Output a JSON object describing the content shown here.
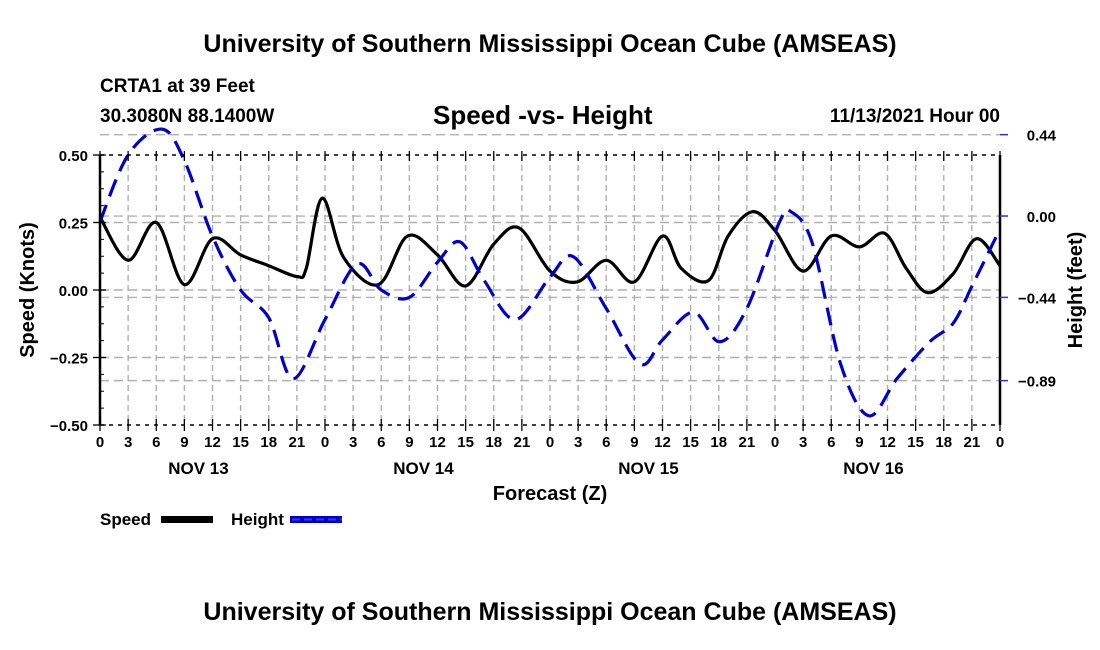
{
  "header": {
    "main_title": "University of Southern Mississippi Ocean Cube (AMSEAS)",
    "station": "CRTA1 at 39 Feet",
    "coords": "30.3080N  88.1400W",
    "subtitle": "Speed -vs- Height",
    "datetime": "11/13/2021 Hour 00"
  },
  "footer": {
    "title": "University of Southern Mississippi Ocean Cube (AMSEAS)"
  },
  "chart_data": {
    "type": "line",
    "title": "Speed -vs- Height",
    "xlabel": "Forecast (Z)",
    "ylabel": "Speed (Knots)",
    "y2label": "Height (feet)",
    "xlim": [
      0,
      96
    ],
    "ylim": [
      -0.5,
      0.5
    ],
    "y2lim": [
      -1.13,
      0.33
    ],
    "x_ticks": [
      0,
      3,
      6,
      9,
      12,
      15,
      18,
      21,
      24,
      27,
      30,
      33,
      36,
      39,
      42,
      45,
      48,
      51,
      54,
      57,
      60,
      63,
      66,
      69,
      72,
      75,
      78,
      81,
      84,
      87,
      90,
      93,
      96
    ],
    "x_tick_labels": [
      "0",
      "3",
      "6",
      "9",
      "12",
      "15",
      "18",
      "21",
      "0",
      "3",
      "6",
      "9",
      "12",
      "15",
      "18",
      "21",
      "0",
      "3",
      "6",
      "9",
      "12",
      "15",
      "18",
      "21",
      "0",
      "3",
      "6",
      "9",
      "12",
      "15",
      "18",
      "21",
      "0"
    ],
    "day_labels": [
      {
        "label": "NOV 13",
        "x": 10.5
      },
      {
        "label": "NOV 14",
        "x": 34.5
      },
      {
        "label": "NOV 15",
        "x": 58.5
      },
      {
        "label": "NOV 16",
        "x": 82.5
      }
    ],
    "y_ticks": [
      0.5,
      0.25,
      0.0,
      -0.25,
      -0.5
    ],
    "y_tick_labels": [
      "0.50",
      "0.25",
      "0.00",
      "−0.25",
      "−0.50"
    ],
    "y2_ticks": [
      0.44,
      0.0,
      -0.44,
      -0.89
    ],
    "y2_tick_labels": [
      "0.44",
      "0.00",
      "−0.44",
      "−0.89"
    ],
    "grid": true,
    "legend_position": "bottom-left",
    "series": [
      {
        "name": "Speed",
        "axis": "left",
        "color": "#000000",
        "style": "solid",
        "x": [
          0,
          3,
          6,
          9,
          12,
          15,
          18,
          21,
          22,
          23.7,
          26,
          29.7,
          32.8,
          36,
          39,
          42,
          44.7,
          48,
          50.9,
          54,
          57,
          60,
          62,
          64.9,
          67,
          69.6,
          72,
          75,
          78,
          81,
          83.7,
          86,
          88.3,
          91,
          93.5,
          96
        ],
        "values": [
          0.27,
          0.11,
          0.25,
          0.02,
          0.19,
          0.13,
          0.09,
          0.05,
          0.08,
          0.34,
          0.12,
          0.02,
          0.2,
          0.13,
          0.015,
          0.17,
          0.23,
          0.07,
          0.03,
          0.11,
          0.03,
          0.2,
          0.08,
          0.035,
          0.2,
          0.29,
          0.22,
          0.07,
          0.2,
          0.16,
          0.21,
          0.08,
          -0.01,
          0.06,
          0.19,
          0.09
        ]
      },
      {
        "name": "Height",
        "axis": "right",
        "color": "#0000cc",
        "style": "dashed",
        "x": [
          0,
          3,
          6.6,
          9,
          12,
          15,
          18,
          20.6,
          24,
          27.4,
          30,
          33,
          36,
          38.4,
          41,
          44.3,
          48,
          50.5,
          54,
          57.6,
          60,
          63.3,
          66.1,
          69,
          72.5,
          73.8,
          76,
          79,
          82,
          85,
          88.5,
          91,
          93,
          96
        ],
        "values": [
          -0.03,
          0.33,
          0.47,
          0.3,
          -0.11,
          -0.4,
          -0.55,
          -0.88,
          -0.56,
          -0.26,
          -0.4,
          -0.44,
          -0.25,
          -0.14,
          -0.35,
          -0.56,
          -0.33,
          -0.22,
          -0.5,
          -0.8,
          -0.67,
          -0.52,
          -0.68,
          -0.5,
          -0.03,
          0.02,
          -0.15,
          -0.8,
          -1.08,
          -0.88,
          -0.68,
          -0.58,
          -0.38,
          -0.07
        ]
      }
    ]
  }
}
